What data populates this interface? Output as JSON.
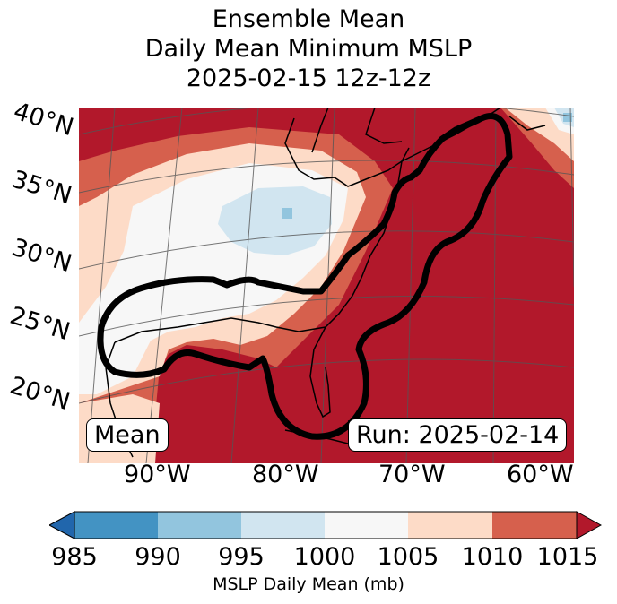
{
  "title": {
    "line1": "Ensemble Mean",
    "line2": "Daily Mean Minimum MSLP",
    "line3": "2025-02-15 12z-12z"
  },
  "map": {
    "lat_labels": [
      "40°N",
      "35°N",
      "30°N",
      "25°N",
      "20°N"
    ],
    "lon_labels": [
      "90°W",
      "80°W",
      "70°W",
      "60°W"
    ],
    "mean_label": "Mean",
    "run_label": "Run: 2025-02-14",
    "colors": {
      "lt985": "#2166ac",
      "985_990": "#4393c3",
      "990_995": "#92c5de",
      "995_1000": "#d1e5f0",
      "1000_1005": "#f7f7f7",
      "1005_1010": "#fddbc7",
      "1010_1015": "#d6604d",
      "ge1015": "#b2182b"
    }
  },
  "colorbar": {
    "ticks": [
      "985",
      "990",
      "995",
      "1000",
      "1005",
      "1010",
      "1015"
    ],
    "label": "MSLP Daily Mean (mb)",
    "colors": [
      "#4393c3",
      "#92c5de",
      "#d1e5f0",
      "#f7f7f7",
      "#fddbc7",
      "#d6604d"
    ],
    "under_color": "#2166ac",
    "over_color": "#b2182b"
  }
}
